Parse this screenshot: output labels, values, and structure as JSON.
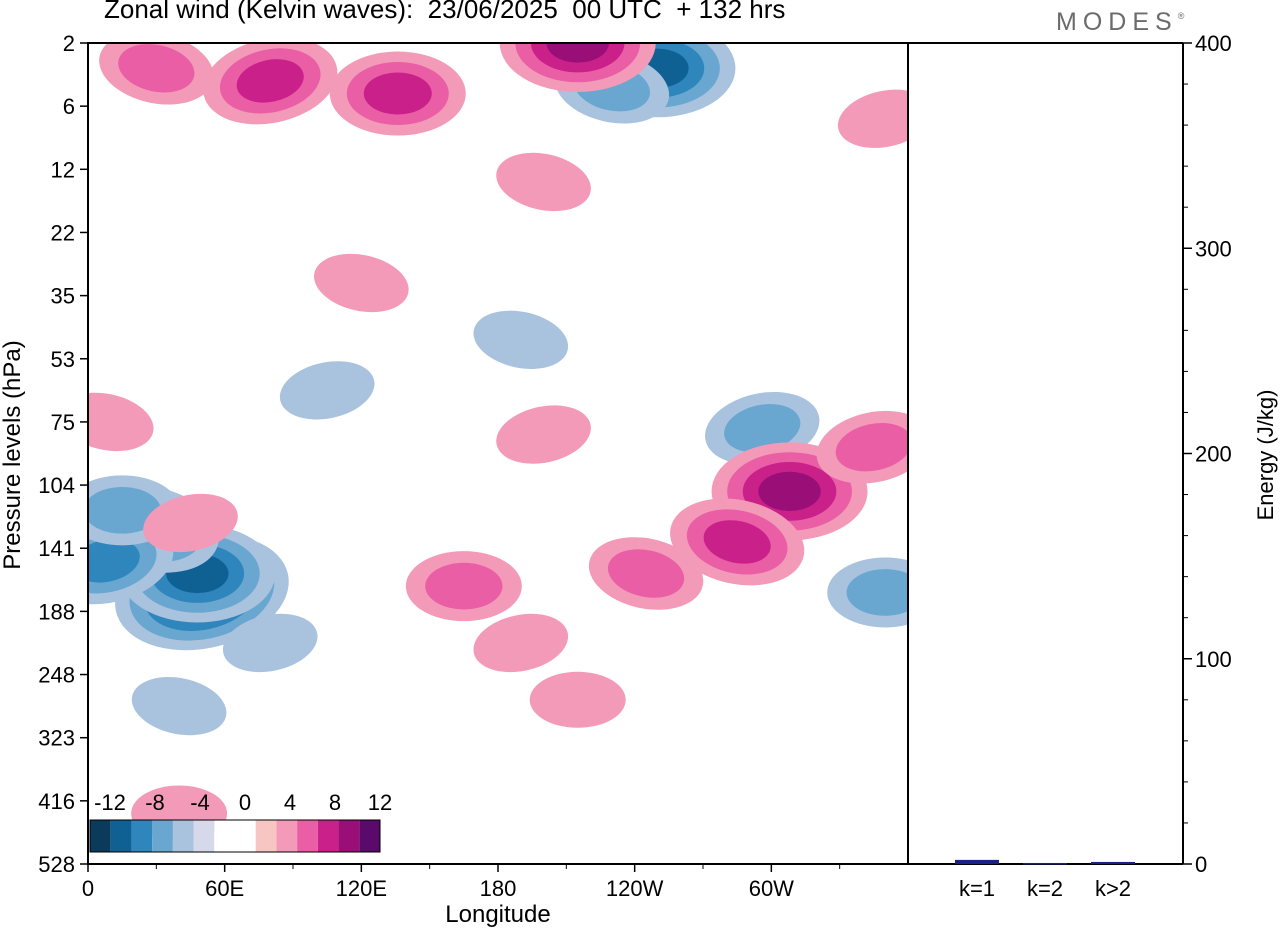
{
  "header": {
    "title": "Zonal wind (Kelvin waves):  23/06/2025  00 UTC  + 132 hrs",
    "brand": "MODES"
  },
  "colors": {
    "negative": [
      "#0b3a5b",
      "#0f6194",
      "#2f86bd",
      "#6aa7d0",
      "#a9c3df",
      "#d6d9ea"
    ],
    "neutral": "#ffffff",
    "positive": [
      "#f7c6c3",
      "#f39ab8",
      "#ea5ea6",
      "#c9208a",
      "#9a0e78",
      "#5a0a6a"
    ],
    "bar": "#1b1f8a"
  },
  "chart_data": [
    {
      "type": "heatmap",
      "title": "Zonal wind (Kelvin waves):  23/06/2025  00 UTC  + 132 hrs",
      "xlabel": "Longitude",
      "ylabel": "Pressure levels (hPa)",
      "x_ticks": [
        "0",
        "60E",
        "120E",
        "180",
        "120W",
        "60W"
      ],
      "y_ticks": [
        "2",
        "6",
        "12",
        "22",
        "35",
        "53",
        "75",
        "104",
        "141",
        "188",
        "248",
        "323",
        "416",
        "528"
      ],
      "colorbar": {
        "labels": [
          "-12",
          "-8",
          "-4",
          "0",
          "4",
          "8",
          "12"
        ],
        "levels": [
          -12,
          -10,
          -8,
          -6,
          -4,
          -2,
          0,
          2,
          4,
          6,
          8,
          10,
          12
        ]
      },
      "features": [
        {
          "lon": 50,
          "level_idx": 8.7,
          "value": -11
        },
        {
          "lon": 48,
          "level_idx": 8.4,
          "value": -9
        },
        {
          "lon": 28,
          "level_idx": 7.7,
          "value": -7
        },
        {
          "lon": 8,
          "level_idx": 8.2,
          "value": -6
        },
        {
          "lon": 15,
          "level_idx": 7.4,
          "value": -4
        },
        {
          "lon": 40,
          "level_idx": 10.5,
          "value": -3
        },
        {
          "lon": 80,
          "level_idx": 9.5,
          "value": -3
        },
        {
          "lon": 250,
          "level_idx": 0.4,
          "value": -9
        },
        {
          "lon": 230,
          "level_idx": 0.7,
          "value": -5
        },
        {
          "lon": 296,
          "level_idx": 6.1,
          "value": -5
        },
        {
          "lon": 350,
          "level_idx": 8.7,
          "value": -5
        },
        {
          "lon": 190,
          "level_idx": 4.7,
          "value": -2
        },
        {
          "lon": 105,
          "level_idx": 5.5,
          "value": -2
        },
        {
          "lon": 308,
          "level_idx": 7.1,
          "value": 8
        },
        {
          "lon": 285,
          "level_idx": 7.9,
          "value": 6
        },
        {
          "lon": 345,
          "level_idx": 6.4,
          "value": 4
        },
        {
          "lon": 165,
          "level_idx": 8.6,
          "value": 5
        },
        {
          "lon": 245,
          "level_idx": 8.4,
          "value": 4
        },
        {
          "lon": 190,
          "level_idx": 9.5,
          "value": 3
        },
        {
          "lon": 215,
          "level_idx": 10.4,
          "value": 3
        },
        {
          "lon": 200,
          "level_idx": 2.2,
          "value": 3
        },
        {
          "lon": 200,
          "level_idx": 6.2,
          "value": 2
        },
        {
          "lon": 215,
          "level_idx": 0.0,
          "value": 8
        },
        {
          "lon": 30,
          "level_idx": 0.4,
          "value": 5
        },
        {
          "lon": 80,
          "level_idx": 0.6,
          "value": 7
        },
        {
          "lon": 136,
          "level_idx": 0.8,
          "value": 7
        },
        {
          "lon": 8,
          "level_idx": 6.0,
          "value": 3
        },
        {
          "lon": 45,
          "level_idx": 7.6,
          "value": 2
        },
        {
          "lon": 40,
          "level_idx": 12.2,
          "value": 3
        },
        {
          "lon": 120,
          "level_idx": 3.8,
          "value": 2
        },
        {
          "lon": 350,
          "level_idx": 1.2,
          "value": 3
        }
      ]
    },
    {
      "type": "bar",
      "ylabel": "Energy (J/kg)",
      "categories": [
        "k=1",
        "k=2",
        "k>2"
      ],
      "values": [
        2,
        0.5,
        1
      ],
      "ylim": [
        0,
        400
      ],
      "y_ticks": [
        "0",
        "100",
        "200",
        "300",
        "400"
      ]
    }
  ]
}
